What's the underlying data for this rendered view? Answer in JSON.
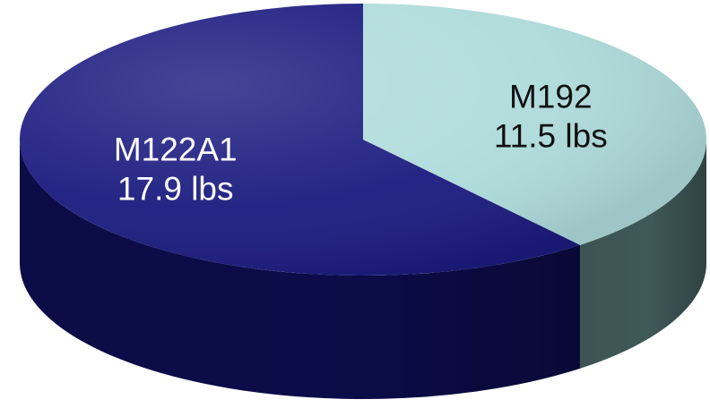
{
  "chart_data": {
    "type": "pie",
    "style": "3d",
    "title": "",
    "slices": [
      {
        "label": "M192",
        "value": 11.5,
        "unit": "lbs",
        "value_text": "11.5 lbs",
        "color": "#b0dcdc",
        "side_color": "#3f5858",
        "text_color": "#111111"
      },
      {
        "label": "M122A1",
        "value": 17.9,
        "unit": "lbs",
        "value_text": "17.9 lbs",
        "color": "#1c1c80",
        "side_color": "#0c0c4a",
        "text_color": "#ffffff"
      }
    ],
    "legend": false
  }
}
